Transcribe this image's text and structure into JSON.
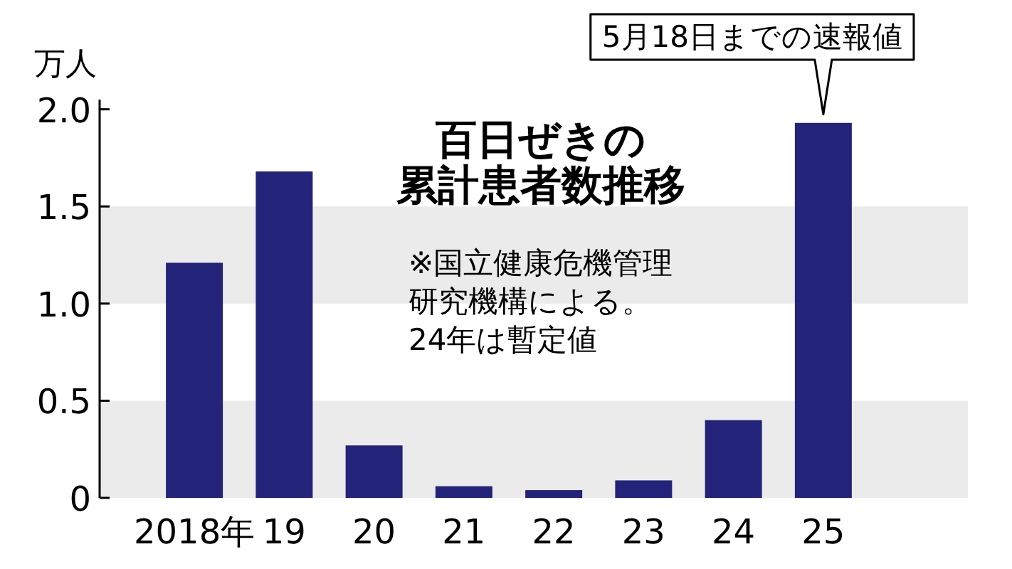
{
  "chart_data": {
    "type": "bar",
    "title": "百日ぜきの累計患者数推移",
    "ylabel": "万人",
    "categories": [
      "2018年",
      "19",
      "20",
      "21",
      "22",
      "23",
      "24",
      "25"
    ],
    "values": [
      1.21,
      1.68,
      0.27,
      0.06,
      0.04,
      0.09,
      0.4,
      1.93
    ],
    "color": "#23237a",
    "ylim": [
      0,
      2.05
    ],
    "yticks": [
      0,
      0.5,
      {
        "value": 1,
        "label": "1.0"
      },
      1.5,
      {
        "value": 2,
        "label": "2.0"
      }
    ],
    "bands": [
      {
        "axis": "y",
        "from": 0,
        "to": 0.5,
        "color": "#ebebeb"
      },
      {
        "axis": "y",
        "from": 1,
        "to": 1.5,
        "color": "#ebebeb"
      }
    ],
    "annotations": [
      "※国立健康危機管理研究機構による。",
      "24年は暫定値",
      {
        "text": "5月18日までの速報値",
        "x": "25",
        "y": 1.93
      }
    ]
  }
}
